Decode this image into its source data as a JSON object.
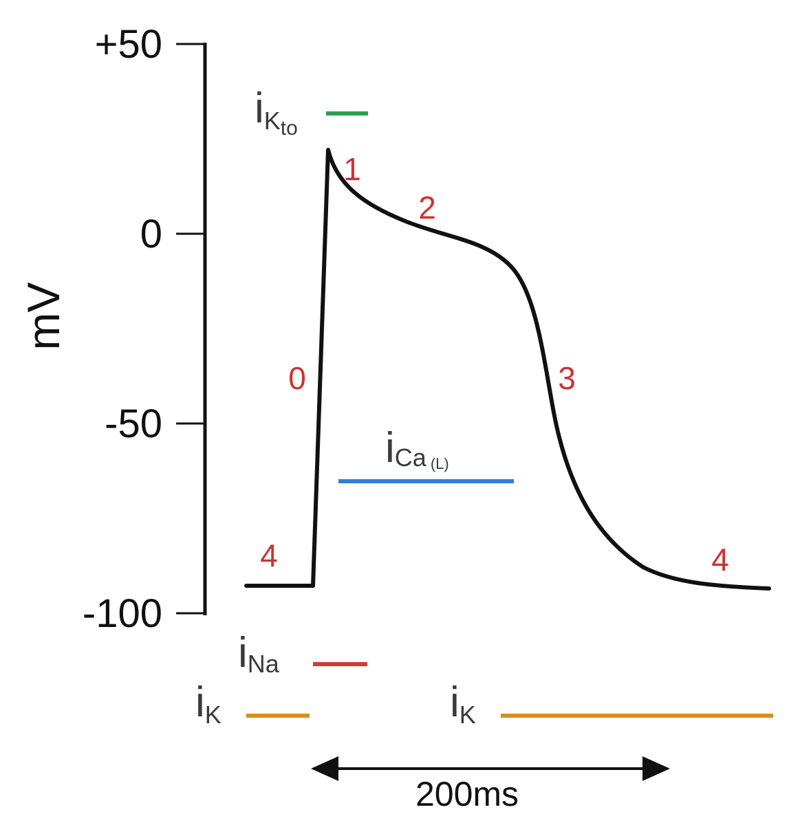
{
  "y_axis": {
    "label": "mV",
    "ticks": [
      "+50",
      "0",
      "-50",
      "-100"
    ]
  },
  "phases": [
    "0",
    "1",
    "2",
    "3",
    "4",
    "4"
  ],
  "currents": {
    "ik_to": {
      "i": "i",
      "sub": "K",
      "subsub": "to"
    },
    "ica_l": {
      "i": "i",
      "sub": "Ca",
      "subsub": "(L)"
    },
    "ina": {
      "i": "i",
      "sub": "Na"
    },
    "ik_left": {
      "i": "i",
      "sub": "K"
    },
    "ik_right": {
      "i": "i",
      "sub": "K"
    }
  },
  "scale_bar": {
    "label": "200ms"
  },
  "colors": {
    "trace": "#111111",
    "phase_labels": "#cc3333",
    "ik_to": "#2e9e4f",
    "ica_l": "#2e7fd6",
    "ina": "#d23a3a",
    "ik": "#e08a1e"
  }
}
